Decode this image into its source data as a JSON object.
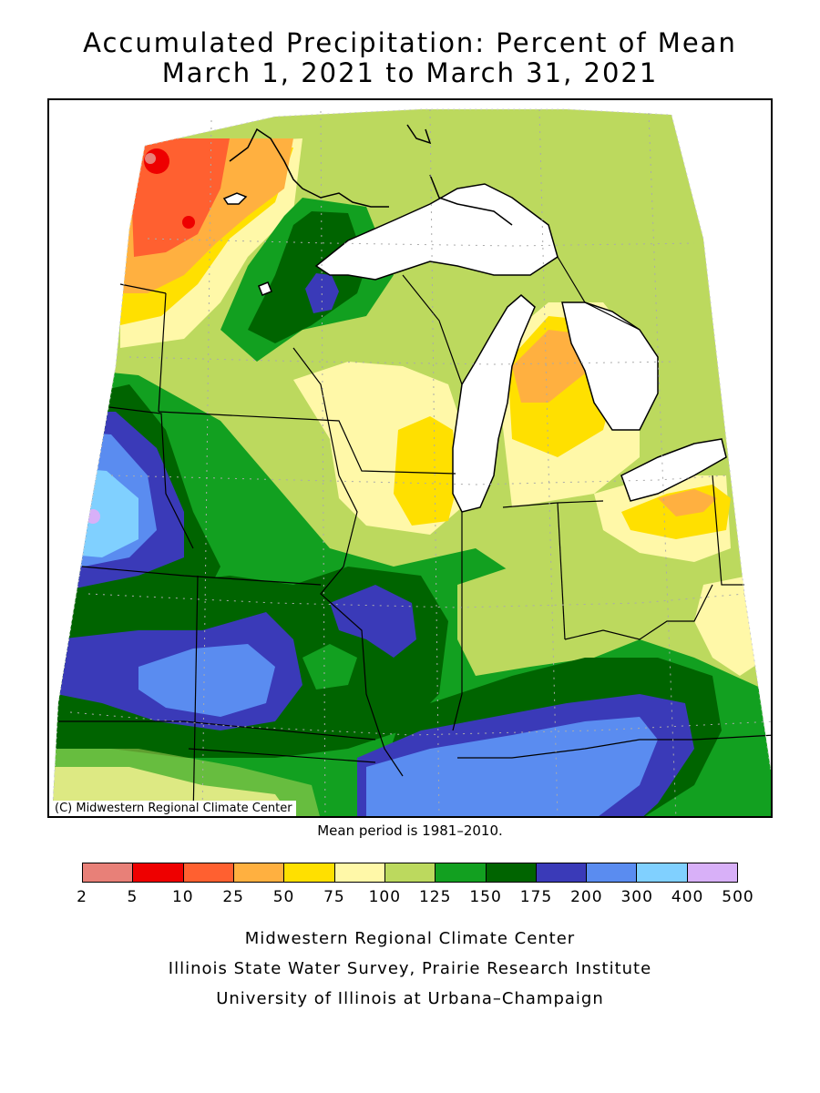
{
  "title": {
    "line1": "Accumulated Precipitation: Percent of Mean",
    "line2": "March 1, 2021 to March 31, 2021"
  },
  "map": {
    "credit": "(C) Midwestern Regional Climate Center",
    "mean_note": "Mean period is 1981–2010."
  },
  "legend": {
    "bins": [
      {
        "from": "2",
        "to": "5",
        "color": "#e88078"
      },
      {
        "from": "5",
        "to": "10",
        "color": "#ee0000"
      },
      {
        "from": "10",
        "to": "25",
        "color": "#ff6030"
      },
      {
        "from": "25",
        "to": "50",
        "color": "#ffb040"
      },
      {
        "from": "50",
        "to": "75",
        "color": "#ffe000"
      },
      {
        "from": "75",
        "to": "100",
        "color": "#fff8a8"
      },
      {
        "from": "100",
        "to": "125",
        "color": "#bcd95e"
      },
      {
        "from": "125",
        "to": "150",
        "color": "#12a020"
      },
      {
        "from": "150",
        "to": "175",
        "color": "#006400"
      },
      {
        "from": "175",
        "to": "200",
        "color": "#3a3ab8"
      },
      {
        "from": "200",
        "to": "300",
        "color": "#5a8cf0"
      },
      {
        "from": "300",
        "to": "400",
        "color": "#80d0ff"
      },
      {
        "from": "400",
        "to": "500",
        "color": "#d8b0f8"
      }
    ],
    "ticks": [
      "2",
      "5",
      "10",
      "25",
      "50",
      "75",
      "100",
      "125",
      "150",
      "175",
      "200",
      "300",
      "400",
      "500"
    ]
  },
  "footer": {
    "line1": "Midwestern Regional Climate Center",
    "line2": "Illinois State Water Survey, Prairie Research Institute",
    "line3": "University of Illinois at Urbana–Champaign"
  },
  "colors": {
    "lake": "#ffffff",
    "border": "#000000",
    "grid": "#aaaaaa"
  }
}
